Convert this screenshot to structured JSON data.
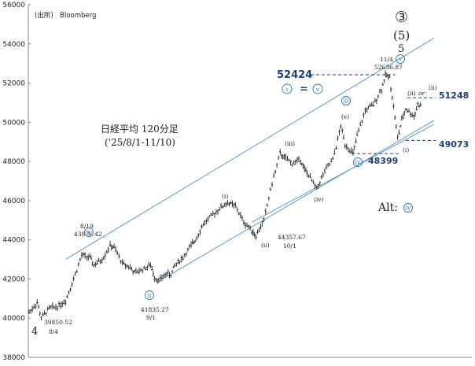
{
  "source": "(出所)　Bloomberg",
  "chart_data": {
    "type": "candlestick",
    "title": "日経平均 120分足",
    "subtitle": "('25/8/1-11/10)",
    "ylim": [
      38000,
      56000
    ],
    "y_ticks": [
      "38000",
      "40000",
      "42000",
      "44000",
      "46000",
      "48000",
      "50000",
      "52000",
      "54000",
      "56000"
    ],
    "grid": false,
    "x_range": [
      0,
      100
    ],
    "path": [
      [
        0,
        40300
      ],
      [
        2,
        40800
      ],
      [
        3,
        40000
      ],
      [
        5,
        40500
      ],
      [
        7,
        40600
      ],
      [
        9,
        40900
      ],
      [
        11,
        42000
      ],
      [
        13,
        43200
      ],
      [
        15,
        43100
      ],
      [
        16,
        42700
      ],
      [
        18,
        43000
      ],
      [
        20,
        43700
      ],
      [
        21,
        43600
      ],
      [
        23,
        42800
      ],
      [
        25,
        42600
      ],
      [
        26,
        42300
      ],
      [
        28,
        42500
      ],
      [
        30,
        42700
      ],
      [
        31,
        42100
      ],
      [
        32,
        41900
      ],
      [
        34,
        42300
      ],
      [
        35,
        42200
      ],
      [
        36,
        42700
      ],
      [
        38,
        43100
      ],
      [
        40,
        43700
      ],
      [
        41,
        44000
      ],
      [
        43,
        44800
      ],
      [
        45,
        45200
      ],
      [
        47,
        45600
      ],
      [
        49,
        45900
      ],
      [
        51,
        45700
      ],
      [
        53,
        44900
      ],
      [
        55,
        44500
      ],
      [
        56,
        44200
      ],
      [
        58,
        45000
      ],
      [
        60,
        46900
      ],
      [
        62,
        48400
      ],
      [
        63,
        48200
      ],
      [
        65,
        47900
      ],
      [
        67,
        48100
      ],
      [
        68,
        47600
      ],
      [
        69,
        47300
      ],
      [
        71,
        46600
      ],
      [
        73,
        47500
      ],
      [
        75,
        48100
      ],
      [
        77,
        49800
      ],
      [
        78,
        48900
      ],
      [
        80,
        48400
      ],
      [
        81,
        49300
      ],
      [
        83,
        50600
      ],
      [
        85,
        50900
      ],
      [
        87,
        51700
      ],
      [
        88,
        52400
      ],
      [
        89,
        52300
      ],
      [
        90,
        50800
      ],
      [
        91,
        49200
      ],
      [
        92,
        50100
      ],
      [
        93,
        50700
      ],
      [
        95,
        50300
      ],
      [
        96,
        50900
      ],
      [
        97,
        50800
      ]
    ],
    "levels": [
      {
        "value": "52424",
        "label": "52424"
      },
      {
        "value": "51248",
        "label": "51248"
      },
      {
        "value": "49073",
        "label": "49073"
      },
      {
        "value": "48399",
        "label": "48399"
      }
    ],
    "channel_upper": [
      [
        9,
        43000
      ],
      [
        100,
        54300
      ]
    ],
    "channel_mid": [
      [
        33,
        42000
      ],
      [
        100,
        50100
      ]
    ],
    "channel_lower": [
      [
        55,
        44900
      ],
      [
        100,
        49900
      ]
    ],
    "annotations": [
      {
        "id": "low-0804",
        "lines": [
          "39850.52",
          "8/4"
        ]
      },
      {
        "id": "high-0819",
        "lines": [
          "8/19",
          "43876.42"
        ]
      },
      {
        "id": "low-0901",
        "lines": [
          "41835.27",
          "9/1"
        ]
      },
      {
        "id": "low-1001",
        "lines": [
          "44357.67",
          "10/1"
        ]
      },
      {
        "id": "high-1104",
        "lines": [
          "11/4",
          "52636.87"
        ]
      }
    ],
    "waves": {
      "w4": "4",
      "w5": "5",
      "w5_paren": "(5)",
      "w3_circle": "③",
      "i_paren": "(i)",
      "ii_paren": "(ii)",
      "iii_paren": "(iii)",
      "iv_paren": "(iv)",
      "v_paren": "(v)",
      "i_small": "(i)",
      "ii_small": "(ii)",
      "ii_small2": "(ii)",
      "or": "or",
      "alt": "Alt:",
      "eq": "=",
      "circ_i": "i",
      "circ_ii": "ii",
      "circ_iii": "iii",
      "circ_iv": "iv",
      "circ_v": "v"
    }
  },
  "colors": {
    "channel": "#5b9bd5",
    "dashed": "#1f3e7a",
    "price": "#222222",
    "circle": "#2e75b6"
  }
}
